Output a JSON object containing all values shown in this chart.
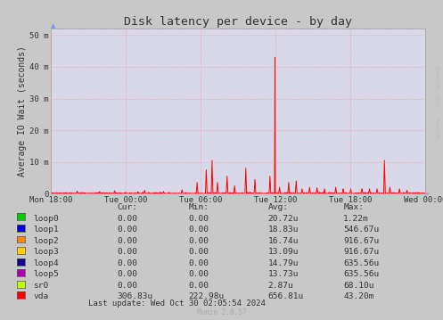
{
  "title": "Disk latency per device - by day",
  "ylabel": "Average IO Wait (seconds)",
  "background_color": "#c8c8c8",
  "plot_bg_color": "#d8d8e8",
  "grid_color": "#ff8888",
  "ytick_labels": [
    "0",
    "10 m",
    "20 m",
    "30 m",
    "40 m",
    "50 m"
  ],
  "ytick_vals_milli": [
    0,
    10,
    20,
    30,
    40,
    50
  ],
  "ylim_milli": [
    0,
    52
  ],
  "xtick_labels": [
    "Mon 18:00",
    "Tue 00:00",
    "Tue 06:00",
    "Tue 12:00",
    "Tue 18:00",
    "Wed 00:00"
  ],
  "line_color": "#ff0000",
  "legend_items": [
    {
      "label": "loop0",
      "color": "#00cc00"
    },
    {
      "label": "loop1",
      "color": "#0000dd"
    },
    {
      "label": "loop2",
      "color": "#ff8800"
    },
    {
      "label": "loop3",
      "color": "#ffcc00"
    },
    {
      "label": "loop4",
      "color": "#110088"
    },
    {
      "label": "loop5",
      "color": "#aa00aa"
    },
    {
      "label": "sr0",
      "color": "#bbff00"
    },
    {
      "label": "vda",
      "color": "#ff0000"
    }
  ],
  "legend_cur": [
    "0.00",
    "0.00",
    "0.00",
    "0.00",
    "0.00",
    "0.00",
    "0.00",
    "306.83u"
  ],
  "legend_min": [
    "0.00",
    "0.00",
    "0.00",
    "0.00",
    "0.00",
    "0.00",
    "0.00",
    "222.98u"
  ],
  "legend_avg": [
    "20.72u",
    "18.83u",
    "16.74u",
    "13.09u",
    "14.79u",
    "13.73u",
    "2.87u",
    "656.81u"
  ],
  "legend_max": [
    "1.22m",
    "546.67u",
    "916.67u",
    "916.67u",
    "635.56u",
    "635.56u",
    "68.10u",
    "43.20m"
  ],
  "footer": "Last update: Wed Oct 30 02:05:54 2024",
  "watermark": "Munin 2.0.57",
  "rrdtool_label": "RRDTOOL / TOBI OETIKER"
}
